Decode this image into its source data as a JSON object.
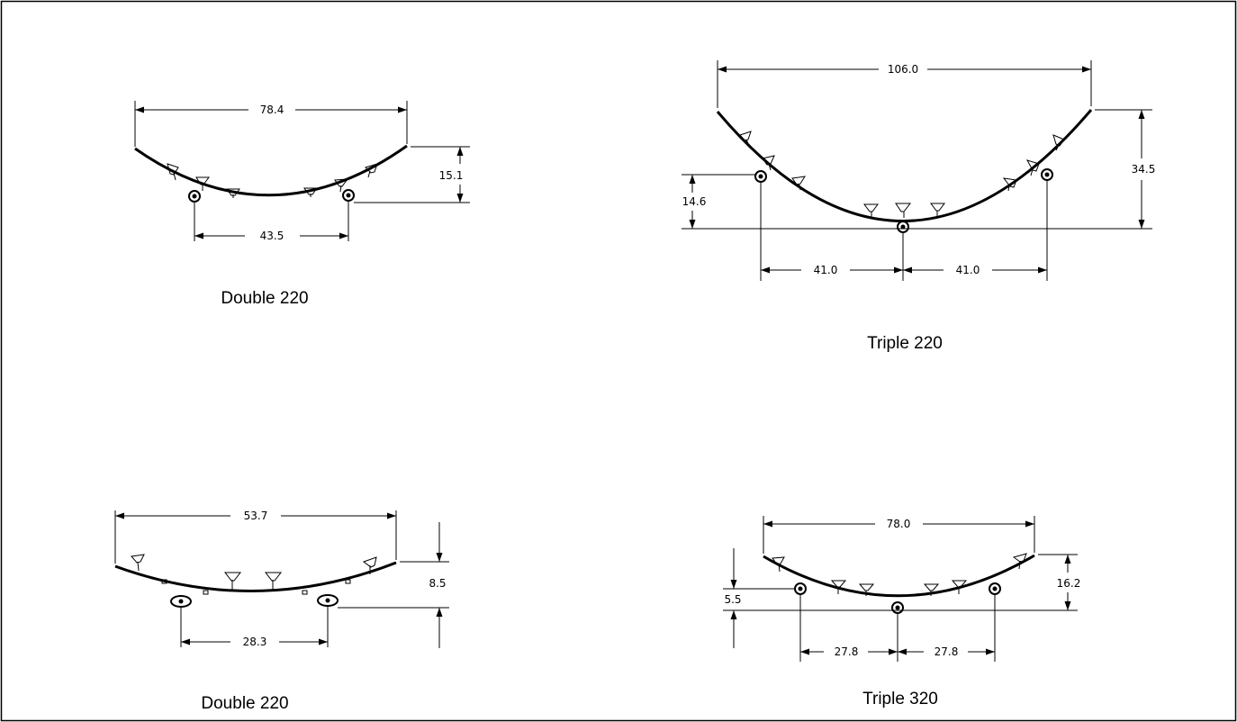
{
  "drawings": [
    {
      "id": "double-220-a",
      "caption": "Double 220",
      "dims": {
        "width_top": "78.4",
        "height_right": "15.1",
        "width_bottom": "43.5"
      }
    },
    {
      "id": "triple-220",
      "caption": "Triple 220",
      "dims": {
        "width_top": "106.0",
        "height_right": "34.5",
        "height_left": "14.6",
        "width_bottom_left": "41.0",
        "width_bottom_right": "41.0"
      }
    },
    {
      "id": "double-220-b",
      "caption": "Double 220",
      "dims": {
        "width_top": "53.7",
        "height_right": "8.5",
        "width_bottom": "28.3"
      }
    },
    {
      "id": "triple-320",
      "caption": "Triple 320",
      "dims": {
        "width_top": "78.0",
        "height_right": "16.2",
        "height_left": "5.5",
        "width_bottom_left": "27.8",
        "width_bottom_right": "27.8"
      }
    }
  ],
  "icons": {
    "speaker": "speaker-cabinet-icon",
    "caster": "caster-wheel-icon",
    "arrow": "dimension-arrow-icon"
  }
}
